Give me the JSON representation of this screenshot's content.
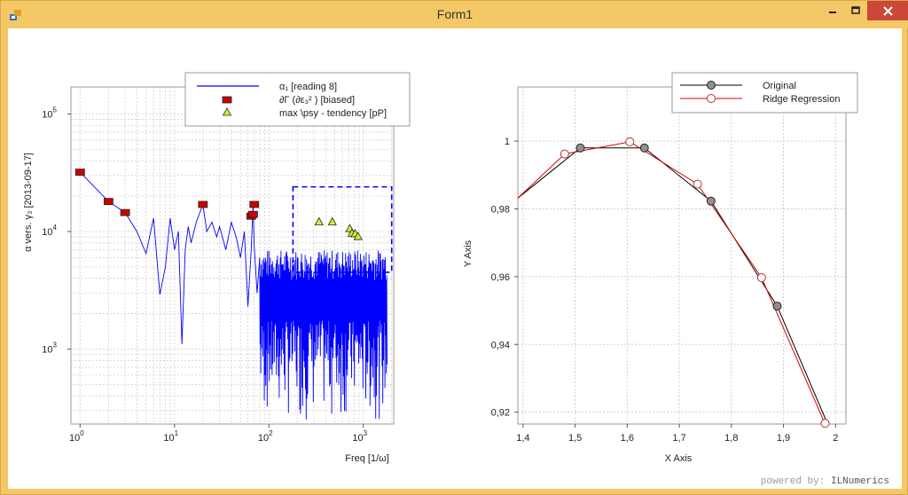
{
  "window": {
    "title": "Form1",
    "icon": "winforms-app-icon",
    "controls": {
      "minimize": "minimize-icon",
      "maximize": "maximize-icon",
      "close": "close-icon"
    }
  },
  "footer": {
    "powered_prefix": "powered by:",
    "powered_brand": "ILNumerics"
  },
  "colors": {
    "window_frame": "#f5c867",
    "close_button": "#c9483a",
    "series_blue": "#0000ff",
    "marker_red": "#cc0000",
    "marker_yellow": "#d4e84a",
    "ridge_red": "#dd0000"
  },
  "chart_data": [
    {
      "type": "line",
      "xscale": "log",
      "yscale": "log",
      "xlabel": "Freq [1/ω]",
      "ylabel": "α vers. γ₃ [2013-09-17]",
      "xlim": [
        0.8,
        2100
      ],
      "ylim": [
        230,
        170000
      ],
      "x_ticks": [
        {
          "value": 1,
          "base": "10",
          "exp": "0"
        },
        {
          "value": 10,
          "base": "10",
          "exp": "1"
        },
        {
          "value": 100,
          "base": "10",
          "exp": "2"
        },
        {
          "value": 1000,
          "base": "10",
          "exp": "3"
        }
      ],
      "y_ticks": [
        {
          "value": 1000,
          "base": "10",
          "exp": "3"
        },
        {
          "value": 10000,
          "base": "10",
          "exp": "4"
        },
        {
          "value": 100000,
          "base": "10",
          "exp": "5"
        }
      ],
      "grid": true,
      "legend_position": "top-right",
      "series": [
        {
          "name": "α₁ [reading 8]",
          "style": "line",
          "color": "#0000ff",
          "x": [
            1,
            2,
            3,
            4,
            5,
            6,
            7,
            8,
            9,
            10,
            11,
            12,
            13,
            14,
            15,
            17,
            20,
            22,
            25,
            28,
            30,
            35,
            40,
            45,
            50,
            55,
            60,
            65,
            68,
            70,
            75,
            80
          ],
          "y": [
            32000,
            18000,
            14500,
            10000,
            6500,
            13000,
            2900,
            5000,
            13000,
            7000,
            10000,
            1100,
            7000,
            11000,
            8000,
            12000,
            17000,
            10000,
            12000,
            9000,
            11000,
            7000,
            12000,
            9000,
            6000,
            10000,
            2300,
            7000,
            17000,
            7500,
            3000,
            6000
          ],
          "noise_band": {
            "x_from": 80,
            "x_to": 1800,
            "y_high": 7000,
            "y_low": 250
          }
        },
        {
          "name": "∂Γ (∂ε₃² ) [biased]",
          "style": "markers",
          "marker": "square",
          "color": "#cc0000",
          "x": [
            1,
            2,
            3,
            20,
            65,
            68,
            70
          ],
          "y": [
            32000,
            18000,
            14500,
            17000,
            13500,
            14000,
            17000
          ]
        },
        {
          "name": "max \\psy - tendency [pP]",
          "style": "markers",
          "marker": "triangle",
          "color": "#d4e84a",
          "x": [
            340,
            470,
            720,
            760,
            820,
            880
          ],
          "y": [
            12000,
            12000,
            10500,
            9600,
            9500,
            9000
          ]
        }
      ],
      "selection_box": {
        "x": [
          180,
          2000
        ],
        "y": [
          4500,
          24000
        ],
        "color": "#0000ff",
        "style": "dashed"
      }
    },
    {
      "type": "line",
      "xlabel": "X Axis",
      "ylabel": "Y Axis",
      "xlim": [
        1.39,
        2.02
      ],
      "ylim": [
        0.9165,
        1.016
      ],
      "x_ticks": [
        "1,4",
        "1,5",
        "1,6",
        "1,7",
        "1,8",
        "1,9",
        "2"
      ],
      "x_tick_values": [
        1.4,
        1.5,
        1.6,
        1.7,
        1.8,
        1.9,
        2.0
      ],
      "y_ticks": [
        "0,92",
        "0,94",
        "0,96",
        "0,98",
        "1"
      ],
      "y_tick_values": [
        0.92,
        0.94,
        0.96,
        0.98,
        1.0
      ],
      "grid": true,
      "legend_position": "top-right",
      "series": [
        {
          "name": "Original",
          "color": "#000000",
          "marker": "filled-circle",
          "x": [
            1.39,
            1.51,
            1.633,
            1.761,
            1.888,
            1.985
          ],
          "y": [
            0.9832,
            0.998,
            0.998,
            0.9823,
            0.9513,
            0.9165
          ],
          "marker_x": [
            1.51,
            1.633,
            1.761,
            1.888
          ],
          "marker_y": [
            0.998,
            0.998,
            0.9823,
            0.9513
          ]
        },
        {
          "name": "Ridge Regression",
          "color": "#dd0000",
          "marker": "open-circle",
          "x": [
            1.39,
            1.48,
            1.605,
            1.735,
            1.858,
            1.98
          ],
          "y": [
            0.9832,
            0.9962,
            0.9998,
            0.9873,
            0.9597,
            0.9165
          ],
          "marker_x": [
            1.48,
            1.605,
            1.735,
            1.858,
            1.98
          ],
          "marker_y": [
            0.9962,
            0.9998,
            0.9873,
            0.9597,
            0.9167
          ]
        }
      ]
    }
  ]
}
